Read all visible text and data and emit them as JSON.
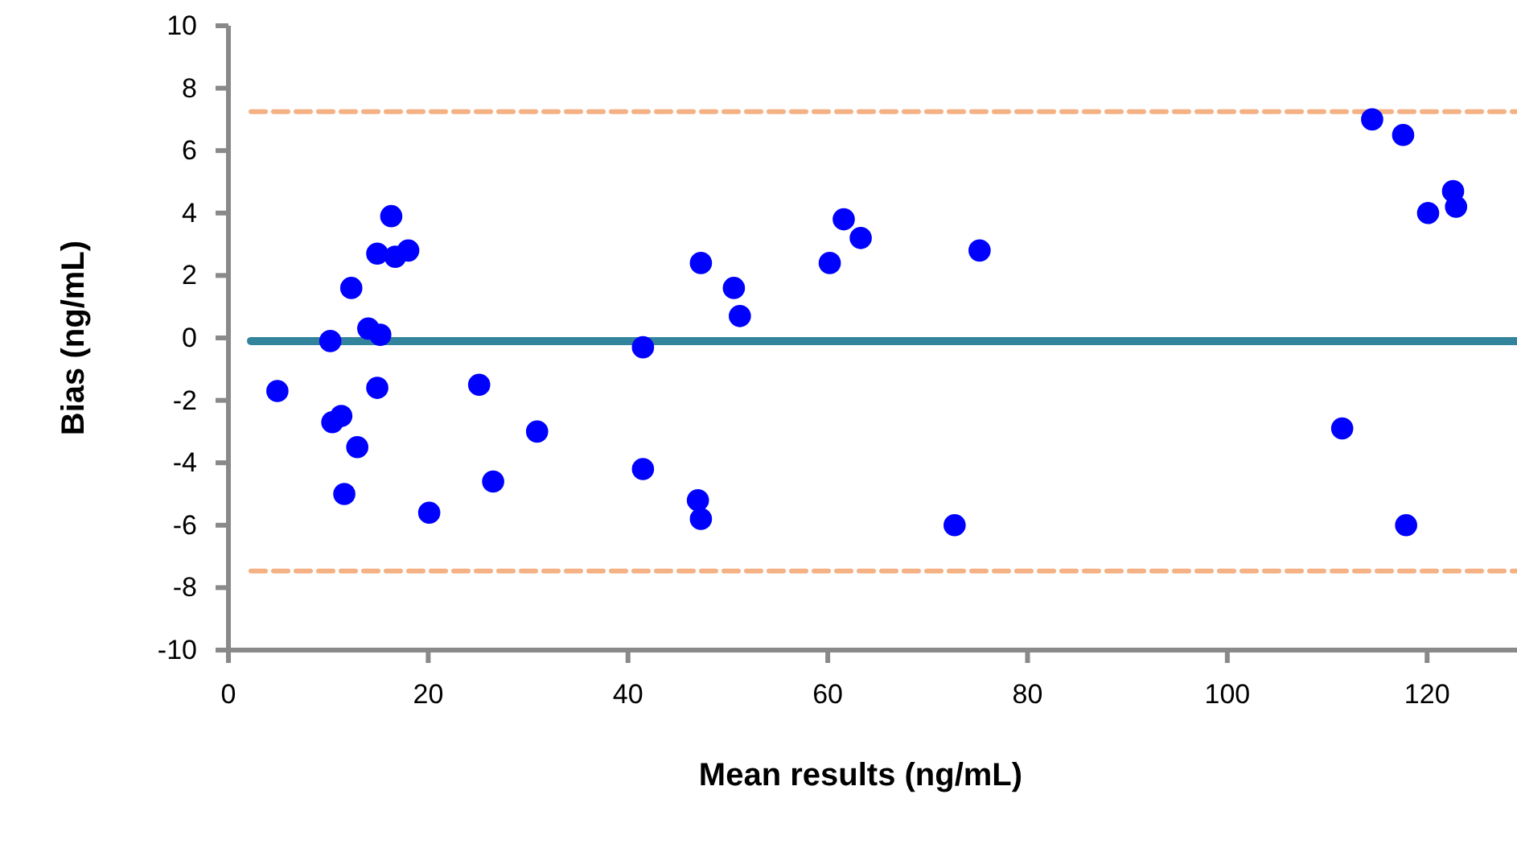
{
  "chart_data": {
    "type": "scatter",
    "xlabel": "Mean results (ng/mL)",
    "ylabel": "Bias (ng/mL)",
    "x": [
      4.9,
      10.2,
      10.4,
      11.3,
      11.6,
      12.3,
      12.9,
      14.0,
      15.2,
      14.9,
      14.9,
      16.3,
      16.7,
      18.0,
      20.1,
      25.1,
      26.5,
      30.9,
      41.5,
      41.5,
      47.3,
      47.0,
      47.3,
      50.6,
      51.2,
      60.2,
      61.6,
      63.3,
      72.7,
      75.2,
      111.5,
      114.5,
      117.6,
      117.9,
      120.1,
      122.6,
      122.9
    ],
    "series": [
      {
        "color": "#0000ff",
        "values": [
          -1.7,
          -0.1,
          -2.7,
          -2.5,
          -5.0,
          1.6,
          -3.5,
          0.3,
          0.1,
          2.7,
          -1.6,
          3.9,
          2.6,
          2.8,
          -5.6,
          -1.5,
          -4.6,
          -3.0,
          -0.3,
          -4.2,
          2.4,
          -5.2,
          -5.8,
          1.6,
          0.7,
          2.4,
          3.8,
          3.2,
          -6.0,
          2.8,
          -2.9,
          7.0,
          6.5,
          -6.0,
          4.0,
          4.7,
          4.2
        ]
      }
    ],
    "xlim": [
      0,
      129
    ],
    "xticks": [
      0,
      20,
      40,
      60,
      80,
      100,
      120
    ],
    "ylim": [
      -10,
      10
    ],
    "yticks": [
      -10,
      -8,
      -6,
      -4,
      -2,
      0,
      2,
      4,
      6,
      8,
      10
    ],
    "marker": "circle",
    "grid": false,
    "ref_lines": [
      {
        "axis": "y",
        "value": -0.1,
        "color": "#31849b",
        "line_style": "solid"
      },
      {
        "axis": "y",
        "value": 7.25,
        "color": "#f4b183",
        "line_style": "dashed"
      },
      {
        "axis": "y",
        "value": -7.47,
        "color": "#f4b183",
        "line_style": "dashed"
      }
    ]
  }
}
